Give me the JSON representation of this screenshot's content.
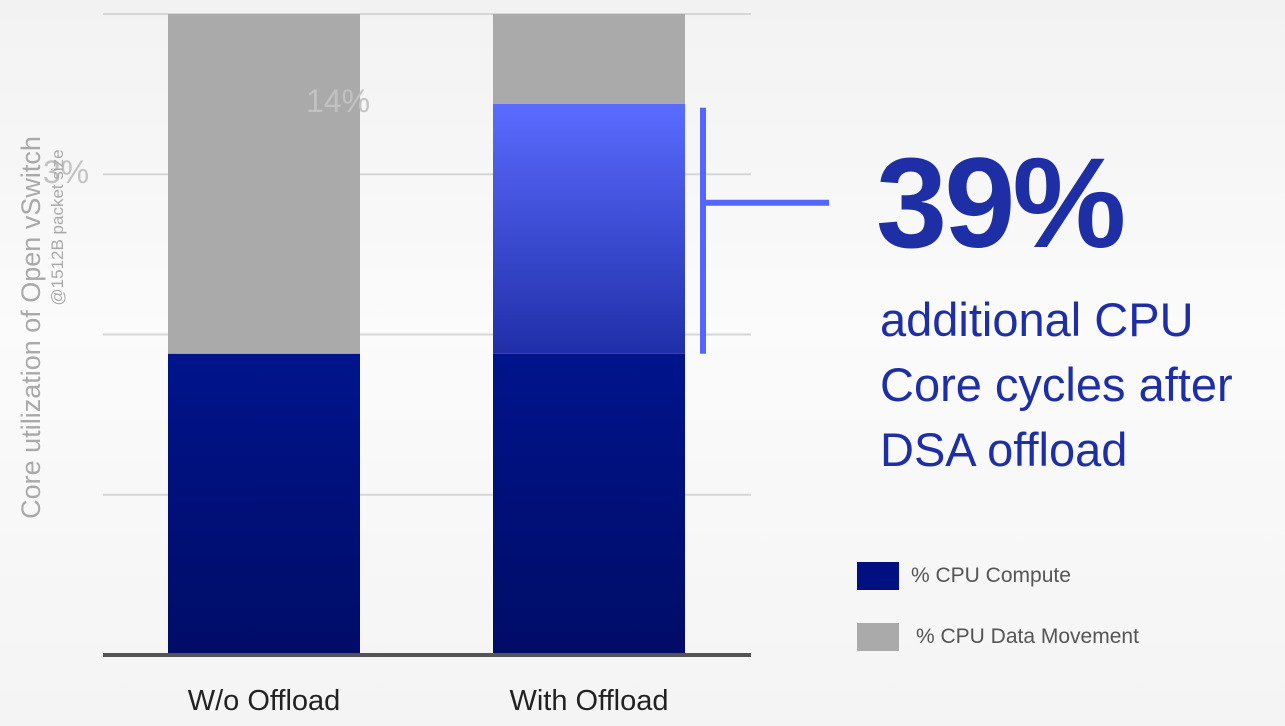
{
  "chart_data": {
    "type": "bar",
    "stacked": true,
    "categories": [
      "W/o Offload",
      "With Offload"
    ],
    "series": [
      {
        "name": "% CPU Compute",
        "values": [
          47,
          47
        ],
        "color": "#001080"
      },
      {
        "name": "% CPU Data Movement",
        "values": [
          53,
          14
        ],
        "color": "#aaaaaa"
      }
    ],
    "freed_segment": {
      "category": "With Offload",
      "value": 39,
      "color": "#5566ff"
    },
    "ylabel": "Core utilization of Open vSwitch",
    "ylabel_sub": "@1512B packet size",
    "ylim": [
      0,
      100
    ],
    "grid": true,
    "legend_position": "bottom-right",
    "annotations": [
      "14%",
      "3%"
    ]
  },
  "callout": {
    "value": "39%",
    "lines": [
      "additional CPU",
      "Core cycles after",
      "DSA offload"
    ],
    "color": "#1e2fa6"
  },
  "legend": [
    {
      "label": "% CPU Compute",
      "color": "#001080"
    },
    {
      "label": "% CPU Data Movement",
      "color": "#aaaaaa"
    }
  ]
}
